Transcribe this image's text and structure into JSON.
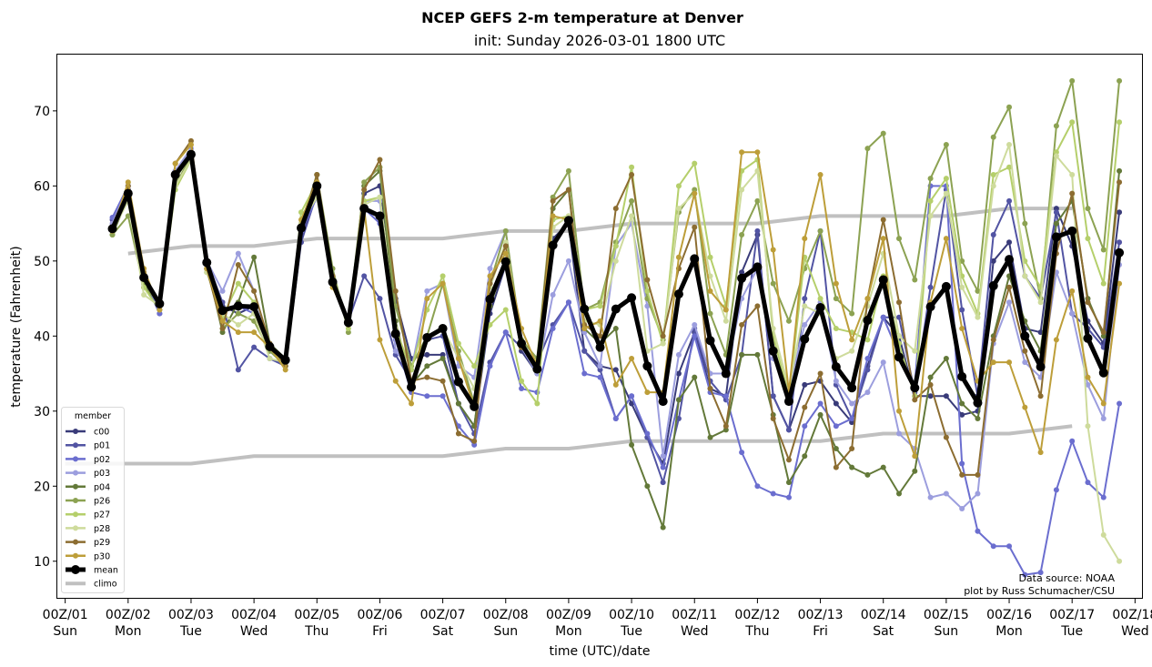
{
  "chart_data": {
    "type": "line",
    "title": "NCEP GEFS 2-m temperature at Denver",
    "subtitle": "init: Sunday 2026-03-01 1800 UTC",
    "xlabel": "time (UTC)/date",
    "ylabel": "temperature (Fahrenheit)",
    "xlim_hours": [
      -3,
      411
    ],
    "ylim": [
      5,
      77.5
    ],
    "yticks": [
      10,
      20,
      30,
      40,
      50,
      60,
      70
    ],
    "xticks": [
      {
        "hour": 0,
        "line1": "00Z/01",
        "line2": "Sun"
      },
      {
        "hour": 24,
        "line1": "00Z/02",
        "line2": "Mon"
      },
      {
        "hour": 48,
        "line1": "00Z/03",
        "line2": "Tue"
      },
      {
        "hour": 72,
        "line1": "00Z/04",
        "line2": "Wed"
      },
      {
        "hour": 96,
        "line1": "00Z/05",
        "line2": "Thu"
      },
      {
        "hour": 120,
        "line1": "00Z/06",
        "line2": "Fri"
      },
      {
        "hour": 144,
        "line1": "00Z/07",
        "line2": "Sat"
      },
      {
        "hour": 168,
        "line1": "00Z/08",
        "line2": "Sun"
      },
      {
        "hour": 192,
        "line1": "00Z/09",
        "line2": "Mon"
      },
      {
        "hour": 216,
        "line1": "00Z/10",
        "line2": "Tue"
      },
      {
        "hour": 240,
        "line1": "00Z/11",
        "line2": "Wed"
      },
      {
        "hour": 264,
        "line1": "00Z/12",
        "line2": "Thu"
      },
      {
        "hour": 288,
        "line1": "00Z/13",
        "line2": "Fri"
      },
      {
        "hour": 312,
        "line1": "00Z/14",
        "line2": "Sat"
      },
      {
        "hour": 336,
        "line1": "00Z/15",
        "line2": "Sun"
      },
      {
        "hour": 360,
        "line1": "00Z/16",
        "line2": "Mon"
      },
      {
        "hour": 384,
        "line1": "00Z/17",
        "line2": "Tue"
      },
      {
        "hour": 408,
        "line1": "00Z/18",
        "line2": "Wed"
      }
    ],
    "x_start_hour": 18,
    "x_step_hours": 6,
    "legend_title": "member",
    "legend_position": "lower-left",
    "grid": false,
    "series": [
      {
        "name": "c00",
        "color": "#393b79",
        "values": [
          54.0,
          59.5,
          47.5,
          43.5,
          61.5,
          64.5,
          50.0,
          44.0,
          43.0,
          44.0,
          38.0,
          36.5,
          53.5,
          59.0,
          47.0,
          42.0,
          59.0,
          60.0,
          45.0,
          37.0,
          37.5,
          37.5,
          31.0,
          28.0,
          43.0,
          49.5,
          38.0,
          35.0,
          53.0,
          55.0,
          38.0,
          36.0,
          35.5,
          31.0,
          26.5,
          23.0,
          35.0,
          40.5,
          33.0,
          32.0,
          48.5,
          53.5,
          32.0,
          27.5,
          33.5,
          34.0,
          31.0,
          28.5,
          36.0,
          42.5,
          40.0,
          32.0,
          32.0,
          32.0,
          29.5,
          30.0,
          50.0,
          52.5,
          41.0,
          40.5,
          57.0,
          52.0,
          42.0,
          39.0,
          56.5
        ]
      },
      {
        "name": "p01",
        "color": "#5254a3",
        "values": [
          55.5,
          59.0,
          47.5,
          43.0,
          61.5,
          64.5,
          50.0,
          44.5,
          35.5,
          38.5,
          37.0,
          36.0,
          52.5,
          59.0,
          47.5,
          42.0,
          48.0,
          45.0,
          37.5,
          34.0,
          39.5,
          40.0,
          31.0,
          27.0,
          36.5,
          40.5,
          38.5,
          36.5,
          41.5,
          44.5,
          38.0,
          35.5,
          29.0,
          32.0,
          26.5,
          20.5,
          29.0,
          41.0,
          34.0,
          31.5,
          37.5,
          54.0,
          32.0,
          27.5,
          45.0,
          54.0,
          33.5,
          29.0,
          35.5,
          42.5,
          42.5,
          32.5,
          46.5,
          59.5,
          43.5,
          32.0,
          53.5,
          58.0,
          48.0,
          45.0,
          56.5,
          43.0,
          41.0,
          38.5,
          52.5
        ]
      },
      {
        "name": "p02",
        "color": "#6b6ecf",
        "values": [
          55.8,
          60.0,
          48.0,
          43.0,
          62.0,
          64.0,
          49.5,
          43.5,
          44.0,
          43.0,
          38.5,
          36.0,
          54.0,
          58.5,
          47.0,
          41.5,
          57.0,
          55.0,
          39.5,
          32.5,
          32.0,
          32.0,
          28.0,
          25.5,
          36.0,
          40.5,
          33.0,
          32.5,
          41.0,
          44.5,
          35.0,
          34.5,
          29.0,
          32.0,
          27.0,
          22.5,
          31.5,
          40.0,
          32.5,
          32.0,
          24.5,
          20.0,
          19.0,
          18.5,
          28.0,
          31.0,
          28.0,
          29.0,
          37.0,
          42.5,
          37.5,
          33.5,
          60.0,
          60.0,
          23.0,
          14.0,
          12.0,
          12.0,
          8.2,
          8.5,
          19.5,
          26.0,
          20.5,
          18.5,
          31.0
        ]
      },
      {
        "name": "p03",
        "color": "#9c9ede",
        "values": [
          55.0,
          60.0,
          47.5,
          44.0,
          62.0,
          65.0,
          50.0,
          46.0,
          51.0,
          46.0,
          38.5,
          37.0,
          55.0,
          59.5,
          47.0,
          42.0,
          58.0,
          58.0,
          38.0,
          35.5,
          46.0,
          47.0,
          36.0,
          34.5,
          49.0,
          54.0,
          38.5,
          35.0,
          45.5,
          50.0,
          40.5,
          36.0,
          52.0,
          55.0,
          44.0,
          24.0,
          37.5,
          41.5,
          35.0,
          35.0,
          45.0,
          49.0,
          37.0,
          33.0,
          41.5,
          44.5,
          34.0,
          31.0,
          32.5,
          36.5,
          27.0,
          25.0,
          18.5,
          19.0,
          17.0,
          19.0,
          39.0,
          44.5,
          36.5,
          34.5,
          48.5,
          43.0,
          33.5,
          29.0,
          49.5
        ]
      },
      {
        "name": "p04",
        "color": "#637939",
        "values": [
          53.5,
          58.5,
          47.0,
          44.5,
          61.0,
          64.0,
          49.5,
          40.5,
          44.5,
          50.5,
          39.0,
          37.0,
          54.5,
          61.5,
          48.0,
          42.0,
          60.0,
          62.0,
          42.0,
          33.5,
          36.0,
          37.0,
          31.0,
          28.0,
          44.0,
          50.0,
          38.5,
          36.5,
          57.0,
          59.5,
          41.0,
          39.0,
          41.0,
          25.5,
          20.0,
          14.5,
          31.5,
          34.5,
          26.5,
          27.5,
          37.5,
          37.5,
          29.5,
          20.5,
          24.0,
          29.5,
          25.0,
          22.5,
          21.5,
          22.5,
          19.0,
          22.0,
          34.5,
          37.0,
          31.0,
          29.0,
          40.0,
          48.0,
          42.0,
          38.0,
          55.0,
          58.0,
          45.0,
          40.0,
          62.0
        ]
      },
      {
        "name": "p26",
        "color": "#8ca252",
        "values": [
          53.5,
          56.0,
          46.5,
          44.5,
          60.0,
          64.0,
          49.0,
          41.0,
          43.0,
          42.0,
          38.0,
          36.0,
          55.0,
          61.5,
          49.0,
          40.5,
          60.5,
          62.5,
          44.0,
          36.0,
          40.0,
          47.0,
          38.0,
          31.0,
          47.0,
          54.0,
          39.5,
          37.0,
          58.5,
          62.0,
          43.5,
          44.5,
          52.5,
          58.0,
          45.0,
          39.5,
          56.5,
          59.5,
          43.0,
          37.5,
          53.5,
          58.0,
          47.0,
          42.0,
          49.0,
          54.0,
          45.0,
          43.0,
          65.0,
          67.0,
          53.0,
          47.5,
          61.0,
          65.5,
          50.0,
          46.0,
          66.5,
          70.5,
          55.0,
          45.0,
          68.0,
          74.0,
          57.0,
          51.5,
          74.0
        ]
      },
      {
        "name": "p27",
        "color": "#b5cf6b",
        "values": [
          54.0,
          58.5,
          46.5,
          43.5,
          59.5,
          63.5,
          48.5,
          42.5,
          47.0,
          44.5,
          38.5,
          36.0,
          56.5,
          60.5,
          48.0,
          41.0,
          58.0,
          58.5,
          41.0,
          35.5,
          43.5,
          48.0,
          39.0,
          36.0,
          41.5,
          43.5,
          34.0,
          31.0,
          55.5,
          56.0,
          43.5,
          44.0,
          52.0,
          62.5,
          46.0,
          39.0,
          60.0,
          63.0,
          50.5,
          44.0,
          62.0,
          63.5,
          40.0,
          32.0,
          50.5,
          45.0,
          41.0,
          40.5,
          39.5,
          48.0,
          39.0,
          32.0,
          58.0,
          61.0,
          48.0,
          43.0,
          61.5,
          62.5,
          50.0,
          46.5,
          64.5,
          68.5,
          53.0,
          47.0,
          68.5
        ]
      },
      {
        "name": "p28",
        "color": "#cedb9c",
        "values": [
          54.0,
          58.0,
          45.5,
          44.0,
          60.0,
          63.5,
          48.5,
          43.0,
          41.5,
          43.0,
          37.0,
          36.5,
          55.0,
          58.5,
          47.0,
          41.5,
          57.5,
          58.5,
          41.0,
          34.0,
          39.5,
          41.0,
          37.0,
          33.0,
          46.5,
          52.5,
          39.0,
          36.5,
          54.5,
          56.0,
          42.0,
          41.5,
          50.0,
          56.0,
          38.0,
          39.0,
          57.0,
          59.0,
          48.0,
          42.0,
          59.5,
          62.0,
          41.0,
          33.0,
          44.0,
          43.0,
          37.0,
          38.0,
          44.0,
          51.0,
          40.0,
          38.0,
          56.0,
          59.0,
          46.5,
          42.5,
          60.0,
          65.5,
          48.0,
          44.5,
          64.0,
          61.5,
          28.0,
          13.5,
          10.0
        ]
      },
      {
        "name": "p29",
        "color": "#8c6d31",
        "values": [
          54.5,
          60.0,
          48.5,
          44.0,
          63.0,
          66.0,
          49.0,
          41.0,
          49.5,
          46.0,
          39.0,
          36.0,
          54.5,
          61.5,
          48.0,
          41.5,
          59.5,
          63.5,
          46.0,
          34.0,
          34.5,
          34.0,
          27.0,
          26.0,
          47.0,
          52.0,
          38.5,
          36.0,
          58.0,
          59.5,
          41.5,
          40.0,
          57.0,
          61.5,
          47.5,
          40.0,
          49.0,
          54.5,
          33.0,
          28.0,
          41.5,
          44.0,
          29.0,
          23.5,
          30.5,
          35.0,
          22.5,
          25.0,
          45.0,
          55.5,
          44.5,
          31.5,
          33.5,
          26.5,
          21.5,
          21.5,
          39.5,
          46.5,
          38.0,
          32.0,
          51.0,
          59.0,
          44.5,
          40.5,
          60.5
        ]
      },
      {
        "name": "p30",
        "color": "#bd9e39",
        "values": [
          54.0,
          60.5,
          49.0,
          43.5,
          63.0,
          65.5,
          49.0,
          42.0,
          40.5,
          40.5,
          38.5,
          35.5,
          55.5,
          60.5,
          46.5,
          42.0,
          57.0,
          39.5,
          34.0,
          31.0,
          45.0,
          47.0,
          37.0,
          30.5,
          48.0,
          51.0,
          41.0,
          36.0,
          56.0,
          55.5,
          41.0,
          42.0,
          33.5,
          37.0,
          32.5,
          32.5,
          50.5,
          59.0,
          46.0,
          43.5,
          64.5,
          64.5,
          51.5,
          32.5,
          53.0,
          61.5,
          47.0,
          39.5,
          45.0,
          53.0,
          30.0,
          24.0,
          44.5,
          53.0,
          41.0,
          34.0,
          36.5,
          36.5,
          30.5,
          24.5,
          39.5,
          46.0,
          34.5,
          31.0,
          47.0
        ]
      }
    ],
    "mean": {
      "name": "mean",
      "color": "#000000",
      "values": [
        54.3,
        59.0,
        47.8,
        44.3,
        61.5,
        64.2,
        49.8,
        43.4,
        44.0,
        43.9,
        38.6,
        36.8,
        54.4,
        60.0,
        47.2,
        41.8,
        57.0,
        56.0,
        40.3,
        33.2,
        39.8,
        41.0,
        33.9,
        30.6,
        44.9,
        49.9,
        39.0,
        35.6,
        52.1,
        55.4,
        43.6,
        38.5,
        43.6,
        45.1,
        36.0,
        31.3,
        45.6,
        50.3,
        39.4,
        35.0,
        47.7,
        49.2,
        38.0,
        31.3,
        39.6,
        43.8,
        35.9,
        33.1,
        42.1,
        47.5,
        37.2,
        33.1,
        43.9,
        46.6,
        34.6,
        31.1,
        46.7,
        50.2,
        40.0,
        35.9,
        53.2,
        54.0,
        39.7,
        35.1,
        51.1
      ]
    },
    "climo": {
      "name": "climo",
      "color": "#c0c0c0",
      "high": {
        "hours": [
          24,
          48,
          72,
          96,
          120,
          144,
          168,
          192,
          216,
          240,
          264,
          288,
          312,
          336,
          360,
          384
        ],
        "values": [
          51,
          52,
          52,
          53,
          53,
          53,
          54,
          54,
          55,
          55,
          55,
          56,
          56,
          56,
          57,
          57
        ]
      },
      "low": {
        "hours": [
          0,
          48,
          72,
          96,
          120,
          144,
          168,
          192,
          216,
          240,
          264,
          288,
          312,
          336,
          360,
          384
        ],
        "values": [
          23,
          23,
          24,
          24,
          24,
          24,
          25,
          25,
          26,
          26,
          26,
          26,
          27,
          27,
          27,
          28
        ]
      }
    },
    "annotations": [
      "Data source: NOAA",
      "plot by Russ Schumacher/CSU"
    ]
  }
}
